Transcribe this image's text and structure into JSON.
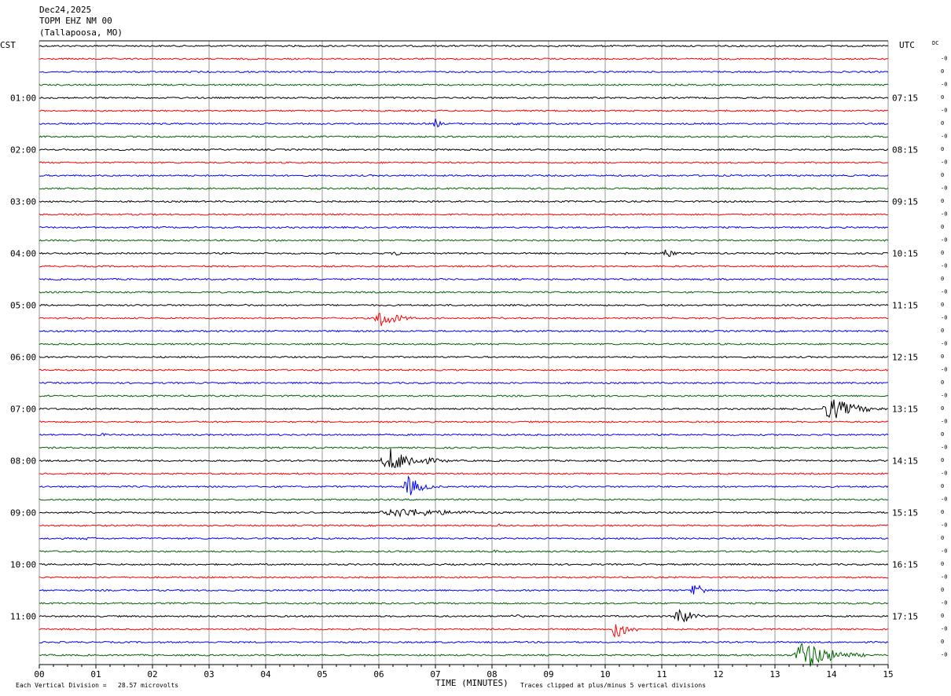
{
  "header": {
    "date": "Dec24,2025",
    "station": "TOPM EHZ NM 00",
    "location": "(Tallapoosa, MO)"
  },
  "left_zone_label": "CST",
  "right_zone_label": "UTC",
  "dc_label": "DC",
  "footer": {
    "scale_note": "Each Vertical Division =   28.57 microvolts",
    "x_axis_title": "TIME (MINUTES)",
    "clip_note": "Traces clipped at plus/minus 5 vertical divisions"
  },
  "chart_data": {
    "type": "line",
    "title": "",
    "xlabel": "TIME (MINUTES)",
    "ylabel": "",
    "xlim": [
      0,
      15
    ],
    "x_tick_labels": [
      "00",
      "01",
      "02",
      "03",
      "04",
      "05",
      "06",
      "07",
      "08",
      "09",
      "10",
      "11",
      "12",
      "13",
      "14",
      "15"
    ],
    "trace_count": 48,
    "trace_colors": [
      "#000000",
      "#ff0000",
      "#0000ff",
      "#006400"
    ],
    "left_hour_labels": [
      "01:00",
      "02:00",
      "03:00",
      "04:00",
      "05:00",
      "06:00",
      "07:00",
      "08:00",
      "09:00",
      "10:00",
      "11:00"
    ],
    "right_hour_labels": [
      "07:15",
      "08:15",
      "09:15",
      "10:15",
      "11:15",
      "12:15",
      "13:15",
      "14:15",
      "15:15",
      "16:15",
      "17:15"
    ],
    "events": [
      {
        "trace": 6,
        "start_min": 6.95,
        "end_min": 7.2,
        "amplitude": 8
      },
      {
        "trace": 6,
        "start_min": 8.3,
        "end_min": 8.8,
        "amplitude": 2
      },
      {
        "trace": 16,
        "start_min": 6.2,
        "end_min": 6.7,
        "amplitude": 4
      },
      {
        "trace": 16,
        "start_min": 10.1,
        "end_min": 10.8,
        "amplitude": 3
      },
      {
        "trace": 16,
        "start_min": 11.0,
        "end_min": 11.4,
        "amplitude": 8
      },
      {
        "trace": 20,
        "start_min": 3.6,
        "end_min": 4.0,
        "amplitude": 2
      },
      {
        "trace": 21,
        "start_min": 5.9,
        "end_min": 6.7,
        "amplitude": 13
      },
      {
        "trace": 28,
        "start_min": 13.8,
        "end_min": 15.0,
        "amplitude": 15
      },
      {
        "trace": 30,
        "start_min": 1.0,
        "end_min": 1.8,
        "amplitude": 2
      },
      {
        "trace": 32,
        "start_min": 6.0,
        "end_min": 7.3,
        "amplitude": 16
      },
      {
        "trace": 34,
        "start_min": 6.4,
        "end_min": 7.1,
        "amplitude": 14
      },
      {
        "trace": 36,
        "start_min": 5.9,
        "end_min": 9.0,
        "amplitude": 6
      },
      {
        "trace": 37,
        "start_min": 8.1,
        "end_min": 8.3,
        "amplitude": 3
      },
      {
        "trace": 38,
        "start_min": 0.6,
        "end_min": 2.0,
        "amplitude": 2
      },
      {
        "trace": 39,
        "start_min": 7.8,
        "end_min": 9.2,
        "amplitude": 2
      },
      {
        "trace": 42,
        "start_min": 11.5,
        "end_min": 11.9,
        "amplitude": 15
      },
      {
        "trace": 44,
        "start_min": 8.2,
        "end_min": 9.0,
        "amplitude": 3
      },
      {
        "trace": 44,
        "start_min": 11.2,
        "end_min": 11.8,
        "amplitude": 14
      },
      {
        "trace": 45,
        "start_min": 10.1,
        "end_min": 10.7,
        "amplitude": 14
      },
      {
        "trace": 47,
        "start_min": 13.3,
        "end_min": 14.6,
        "amplitude": 20
      }
    ]
  }
}
